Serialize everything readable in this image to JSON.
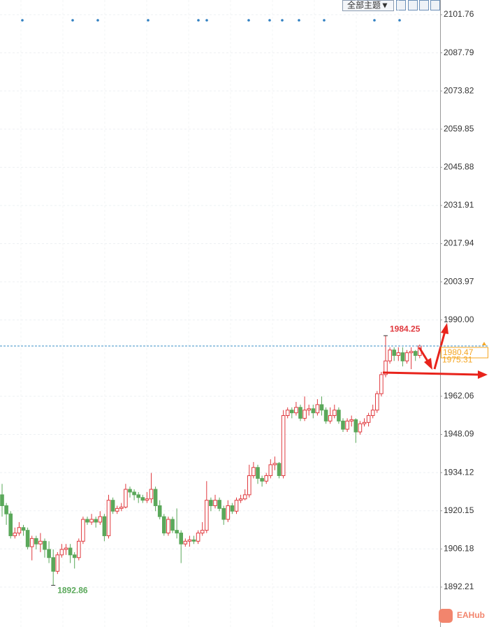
{
  "toolbar": {
    "label": "全部主题▼"
  },
  "watermark": "EAHub",
  "chart_data": {
    "type": "candlestick",
    "open": [
      1926,
      1922,
      1919,
      1911,
      1912,
      1914,
      1913,
      1907,
      1910,
      1908,
      1909,
      1906,
      1903,
      1898,
      1904,
      1906,
      1906.5,
      1904,
      1903,
      1909,
      1917,
      1916,
      1917,
      1916,
      1918,
      1911,
      1924,
      1920,
      1921,
      1921.5,
      1928,
      1927,
      1926,
      1925,
      1924,
      1924.5,
      1928,
      1922,
      1918,
      1912,
      1917,
      1913,
      1912,
      1908,
      1909,
      1909.5,
      1909,
      1912,
      1913,
      1924,
      1922,
      1924,
      1921,
      1917,
      1922,
      1920,
      1924,
      1924.5,
      1926,
      1933,
      1936,
      1932,
      1931,
      1933,
      1937,
      1937.5,
      1933,
      1955,
      1957,
      1956,
      1958,
      1954,
      1957,
      1957.5,
      1956,
      1959,
      1957,
      1953,
      1955,
      1957,
      1953,
      1950,
      1953,
      1953.5,
      1949,
      1952,
      1952.5,
      1955,
      1957,
      1963,
      1970,
      1975,
      1979,
      1977,
      1978,
      1975,
      1978,
      1978.5,
      1977
    ],
    "high": [
      1930,
      1923,
      1920,
      1914,
      1916,
      1915,
      1914,
      1911,
      1911,
      1912,
      1910,
      1909,
      1906,
      1905,
      1908,
      1908,
      1908,
      1905,
      1910,
      1918,
      1918,
      1919,
      1918,
      1920,
      1919,
      1926,
      1925,
      1922,
      1923,
      1930,
      1929,
      1928,
      1927,
      1926,
      1927,
      1934,
      1929,
      1924,
      1919,
      1918,
      1918,
      1921,
      1913,
      1910,
      1911,
      1911,
      1913,
      1916,
      1931,
      1925,
      1926,
      1925,
      1922,
      1924,
      1923,
      1925,
      1926,
      1928,
      1937,
      1938,
      1937,
      1933,
      1934,
      1939,
      1940,
      1938,
      1957,
      1958,
      1958,
      1960,
      1959,
      1962,
      1959,
      1959,
      1961,
      1962,
      1958,
      1958,
      1959,
      1958,
      1954,
      1954,
      1955,
      1954,
      1953,
      1954,
      1956,
      1959,
      1964,
      1971,
      1984.25,
      1980,
      1980,
      1980,
      1980,
      1979,
      1980,
      1979,
      1981
    ],
    "low": [
      1918,
      1915,
      1910,
      1910,
      1911,
      1911,
      1906,
      1902,
      1906,
      1905,
      1903,
      1901,
      1892.86,
      1897,
      1903,
      1904,
      1901,
      1899,
      1902,
      1908,
      1915,
      1915,
      1914,
      1915,
      1909,
      1910,
      1919,
      1919,
      1920,
      1921,
      1925,
      1924,
      1923,
      1923,
      1923,
      1923,
      1920,
      1917,
      1911,
      1911,
      1912,
      1910,
      1901,
      1907,
      1907,
      1908,
      1908,
      1911,
      1912,
      1920,
      1921,
      1920,
      1915,
      1916,
      1919,
      1919,
      1923,
      1924,
      1925,
      1932,
      1930,
      1929,
      1930,
      1932,
      1935,
      1932,
      1932,
      1954,
      1954,
      1955,
      1953,
      1953,
      1955,
      1954,
      1955,
      1955,
      1952,
      1952,
      1954,
      1952,
      1949,
      1949,
      1951,
      1945,
      1948,
      1951,
      1951,
      1954,
      1956,
      1962,
      1969,
      1974,
      1975,
      1975,
      1973,
      1974,
      1972,
      1975,
      1976
    ],
    "close": [
      1922,
      1919,
      1911,
      1912,
      1914,
      1913,
      1907,
      1910,
      1908,
      1909,
      1906,
      1903,
      1898,
      1904,
      1906,
      1906.5,
      1904,
      1903,
      1909,
      1917,
      1916,
      1917,
      1916,
      1918,
      1911,
      1924,
      1920,
      1921,
      1921.5,
      1928,
      1927,
      1926,
      1925,
      1924,
      1924.5,
      1928,
      1922,
      1918,
      1912,
      1917,
      1913,
      1912,
      1908,
      1909,
      1909.5,
      1909,
      1912,
      1913,
      1924,
      1922,
      1924,
      1921,
      1917,
      1922,
      1920,
      1924,
      1924.5,
      1926,
      1933,
      1936,
      1932,
      1931,
      1933,
      1937,
      1937.5,
      1933,
      1955,
      1957,
      1956,
      1958,
      1954,
      1957,
      1957.5,
      1956,
      1959,
      1957,
      1953,
      1955,
      1957,
      1953,
      1950,
      1953,
      1953.5,
      1949,
      1952,
      1952.5,
      1955,
      1957,
      1963,
      1970,
      1975,
      1979,
      1977,
      1978,
      1975,
      1978,
      1978.5,
      1977,
      1980.47
    ],
    "up_color": "#e0393e",
    "down_color": "#5aa85a",
    "level": 1975.31,
    "ylim": [
      1877.6,
      2107.13
    ],
    "yticks": [
      2101.76,
      2087.79,
      2073.82,
      2059.85,
      2045.88,
      2031.91,
      2017.94,
      2003.97,
      {
        "value": 1990,
        "label": "1990.00"
      },
      1962.06,
      1948.09,
      1934.12,
      1920.15,
      1906.18,
      1892.21
    ],
    "grid": true
  }
}
